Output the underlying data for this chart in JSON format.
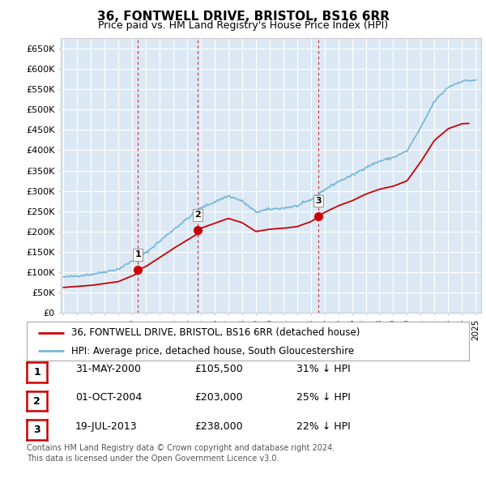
{
  "title": "36, FONTWELL DRIVE, BRISTOL, BS16 6RR",
  "subtitle": "Price paid vs. HM Land Registry's House Price Index (HPI)",
  "ytick_labels": [
    "£0",
    "£50K",
    "£100K",
    "£150K",
    "£200K",
    "£250K",
    "£300K",
    "£350K",
    "£400K",
    "£450K",
    "£500K",
    "£550K",
    "£600K",
    "£650K"
  ],
  "ytick_values": [
    0,
    50000,
    100000,
    150000,
    200000,
    250000,
    300000,
    350000,
    400000,
    450000,
    500000,
    550000,
    600000,
    650000
  ],
  "hpi_color": "#7ab8d9",
  "sale_color": "#cc0000",
  "fig_bg_color": "#ffffff",
  "plot_bg_color": "#dce9f5",
  "grid_color": "#ffffff",
  "vline_color": "#cc0000",
  "sale_point_data": [
    {
      "year": 2000.417,
      "price": 105500,
      "label": "1"
    },
    {
      "year": 2004.75,
      "price": 203000,
      "label": "2"
    },
    {
      "year": 2013.55,
      "price": 238000,
      "label": "3"
    }
  ],
  "hpi_control_years": [
    1995,
    1997,
    1999,
    2001,
    2003,
    2005,
    2007,
    2008,
    2009,
    2010,
    2011,
    2012,
    2013,
    2014,
    2015,
    2016,
    2017,
    2018,
    2019,
    2020,
    2021,
    2022,
    2023,
    2024,
    2025
  ],
  "hpi_control_vals": [
    88000,
    95000,
    108000,
    148000,
    205000,
    258000,
    288000,
    275000,
    248000,
    255000,
    258000,
    263000,
    278000,
    303000,
    323000,
    338000,
    358000,
    373000,
    382000,
    398000,
    455000,
    520000,
    555000,
    570000,
    572000
  ],
  "red_sale_years": [
    1995.0,
    2000.417,
    2004.75,
    2013.55,
    2024.5
  ],
  "red_sale_prices": [
    63000,
    105500,
    203000,
    238000,
    415000
  ],
  "legend_entries": [
    "36, FONTWELL DRIVE, BRISTOL, BS16 6RR (detached house)",
    "HPI: Average price, detached house, South Gloucestershire"
  ],
  "table_rows": [
    {
      "num": "1",
      "date": "31-MAY-2000",
      "price": "£105,500",
      "hpi": "31% ↓ HPI"
    },
    {
      "num": "2",
      "date": "01-OCT-2004",
      "price": "£203,000",
      "hpi": "25% ↓ HPI"
    },
    {
      "num": "3",
      "date": "19-JUL-2013",
      "price": "£238,000",
      "hpi": "22% ↓ HPI"
    }
  ],
  "footnote1": "Contains HM Land Registry data © Crown copyright and database right 2024.",
  "footnote2": "This data is licensed under the Open Government Licence v3.0.",
  "xlim": [
    1994.8,
    2025.4
  ],
  "ylim": [
    0,
    675000
  ]
}
